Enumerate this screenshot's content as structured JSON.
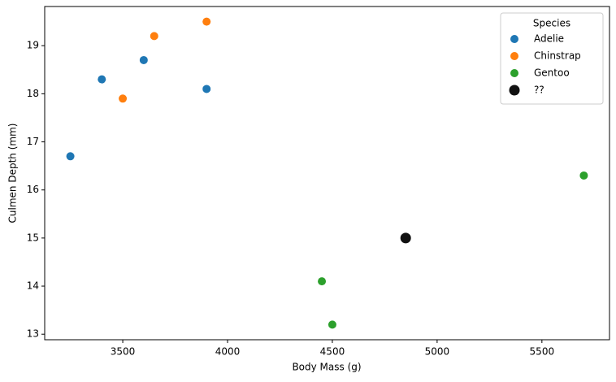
{
  "chart_data": {
    "type": "scatter",
    "x_label": "Body Mass (g)",
    "y_label": "Culmen Depth (mm)",
    "legend_title": "Species",
    "legend": "upper right",
    "xlim": [
      3127.5,
      5822.5
    ],
    "xticks": [
      3500,
      4000,
      4500,
      5000,
      5500
    ],
    "ylim": [
      12.885,
      19.815
    ],
    "yticks": [
      13,
      14,
      15,
      16,
      17,
      18,
      19
    ],
    "series": [
      {
        "name": "Adelie",
        "color": "#1f77b4",
        "marker_size": 5,
        "x": [
          3250,
          3400,
          3600,
          3900
        ],
        "y": [
          16.7,
          18.3,
          18.7,
          18.1
        ]
      },
      {
        "name": "Chinstrap",
        "color": "#ff7f0e",
        "marker_size": 5,
        "x": [
          3500,
          3650,
          3900
        ],
        "y": [
          17.9,
          19.2,
          19.5
        ]
      },
      {
        "name": "Gentoo",
        "color": "#2ca02c",
        "marker_size": 5,
        "x": [
          4450,
          4500,
          5700
        ],
        "y": [
          14.1,
          13.2,
          16.3
        ]
      },
      {
        "name": "??",
        "color": "#111111",
        "marker_size": 6.5,
        "x": [
          4850
        ],
        "y": [
          15.0
        ]
      }
    ]
  }
}
